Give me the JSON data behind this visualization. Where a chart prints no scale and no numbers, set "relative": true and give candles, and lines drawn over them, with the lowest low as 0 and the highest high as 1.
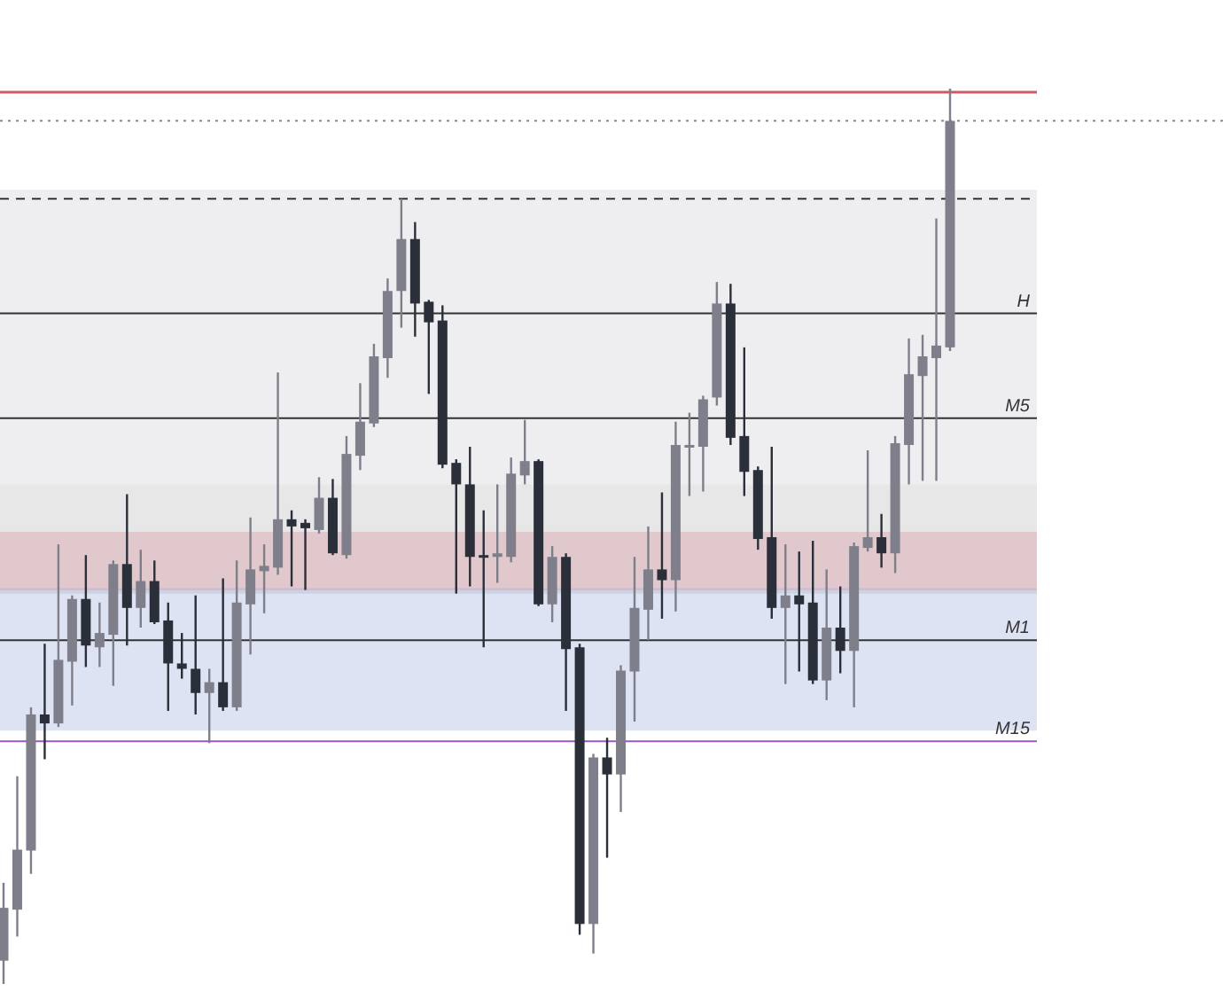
{
  "chart_data": {
    "type": "candlestick",
    "relative": true,
    "categories": [
      null,
      null,
      null,
      null,
      null,
      null,
      null,
      null,
      null,
      null,
      null,
      null,
      null,
      null,
      null,
      null,
      null,
      null,
      null,
      null,
      null,
      null,
      null,
      null,
      null,
      null,
      null,
      null,
      null,
      null,
      null,
      null,
      null,
      null,
      null,
      null,
      null,
      null,
      null,
      null,
      null,
      null,
      null,
      null,
      null,
      null,
      null,
      null,
      null,
      null,
      null,
      null,
      null,
      null,
      null,
      null,
      null,
      null,
      null,
      null,
      null,
      null,
      null,
      null,
      null,
      null,
      null,
      null,
      null,
      null
    ],
    "ohlc": [
      [
        0.026,
        0.113,
        0,
        0.085
      ],
      [
        0.083,
        0.232,
        0.053,
        0.15
      ],
      [
        0.149,
        0.309,
        0.123,
        0.301
      ],
      [
        0.301,
        0.38,
        0.251,
        0.291
      ],
      [
        0.291,
        0.491,
        0.287,
        0.362
      ],
      [
        0.36,
        0.434,
        0.311,
        0.43
      ],
      [
        0.43,
        0.479,
        0.354,
        0.378
      ],
      [
        0.376,
        0.426,
        0.354,
        0.392
      ],
      [
        0.39,
        0.473,
        0.333,
        0.469
      ],
      [
        0.469,
        0.547,
        0.378,
        0.42
      ],
      [
        0.42,
        0.485,
        0.398,
        0.45
      ],
      [
        0.45,
        0.473,
        0.402,
        0.404
      ],
      [
        0.406,
        0.426,
        0.305,
        0.358
      ],
      [
        0.358,
        0.392,
        0.341,
        0.352
      ],
      [
        0.352,
        0.434,
        0.301,
        0.325
      ],
      [
        0.325,
        0.352,
        0.269,
        0.337
      ],
      [
        0.337,
        0.453,
        0.305,
        0.309
      ],
      [
        0.309,
        0.473,
        0.305,
        0.426
      ],
      [
        0.424,
        0.521,
        0.368,
        0.463
      ],
      [
        0.461,
        0.491,
        0.414,
        0.467
      ],
      [
        0.465,
        0.683,
        0.457,
        0.519
      ],
      [
        0.519,
        0.529,
        0.444,
        0.511
      ],
      [
        0.515,
        0.519,
        0.44,
        0.509
      ],
      [
        0.507,
        0.566,
        0.503,
        0.543
      ],
      [
        0.543,
        0.564,
        0.479,
        0.481
      ],
      [
        0.479,
        0.612,
        0.475,
        0.592
      ],
      [
        0.59,
        0.671,
        0.574,
        0.628
      ],
      [
        0.626,
        0.715,
        0.622,
        0.701
      ],
      [
        0.699,
        0.788,
        0.677,
        0.774
      ],
      [
        0.774,
        0.877,
        0.733,
        0.832
      ],
      [
        0.832,
        0.851,
        0.723,
        0.76
      ],
      [
        0.762,
        0.764,
        0.659,
        0.739
      ],
      [
        0.741,
        0.758,
        0.576,
        0.58
      ],
      [
        0.582,
        0.586,
        0.436,
        0.558
      ],
      [
        0.558,
        0.6,
        0.444,
        0.477
      ],
      [
        0.479,
        0.529,
        0.376,
        0.477
      ],
      [
        0.477,
        0.558,
        0.448,
        0.481
      ],
      [
        0.477,
        0.588,
        0.471,
        0.57
      ],
      [
        0.568,
        0.63,
        0.558,
        0.584
      ],
      [
        0.584,
        0.586,
        0.422,
        0.424
      ],
      [
        0.424,
        0.489,
        0.404,
        0.477
      ],
      [
        0.477,
        0.481,
        0.305,
        0.374
      ],
      [
        0.376,
        0.38,
        0.055,
        0.067
      ],
      [
        0.067,
        0.257,
        0.034,
        0.253
      ],
      [
        0.253,
        0.275,
        0.141,
        0.234
      ],
      [
        0.234,
        0.356,
        0.192,
        0.35
      ],
      [
        0.349,
        0.477,
        0.293,
        0.42
      ],
      [
        0.418,
        0.511,
        0.384,
        0.463
      ],
      [
        0.463,
        0.549,
        0.408,
        0.451
      ],
      [
        0.451,
        0.628,
        0.416,
        0.602
      ],
      [
        0.6,
        0.638,
        0.545,
        0.602
      ],
      [
        0.6,
        0.657,
        0.55,
        0.653
      ],
      [
        0.655,
        0.784,
        0.646,
        0.76
      ],
      [
        0.76,
        0.782,
        0.602,
        0.61
      ],
      [
        0.612,
        0.711,
        0.545,
        0.572
      ],
      [
        0.574,
        0.578,
        0.485,
        0.497
      ],
      [
        0.499,
        0.6,
        0.408,
        0.42
      ],
      [
        0.42,
        0.491,
        0.335,
        0.434
      ],
      [
        0.434,
        0.483,
        0.349,
        0.424
      ],
      [
        0.426,
        0.495,
        0.335,
        0.339
      ],
      [
        0.339,
        0.463,
        0.317,
        0.398
      ],
      [
        0.398,
        0.444,
        0.347,
        0.372
      ],
      [
        0.372,
        0.493,
        0.309,
        0.489
      ],
      [
        0.487,
        0.596,
        0.483,
        0.499
      ],
      [
        0.499,
        0.525,
        0.465,
        0.481
      ],
      [
        0.481,
        0.612,
        0.459,
        0.604
      ],
      [
        0.602,
        0.721,
        0.558,
        0.681
      ],
      [
        0.679,
        0.725,
        0.562,
        0.701
      ],
      [
        0.699,
        0.855,
        0.562,
        0.713
      ],
      [
        0.711,
        1,
        0.707,
        0.964
      ]
    ],
    "ref_lines": [
      {
        "axis": "y",
        "value": 0.996,
        "label": null,
        "color": "#cc5b66",
        "line_style": "solid"
      },
      {
        "axis": "y",
        "value": 0.964,
        "label": null,
        "color": "#8a8a8a",
        "line_style": "dotted"
      },
      {
        "axis": "y",
        "value": 0.877,
        "label": null,
        "color": "#333333",
        "line_style": "dashed"
      },
      {
        "axis": "y",
        "value": 0.749,
        "label": "H",
        "color": "#333333",
        "line_style": "solid"
      },
      {
        "axis": "y",
        "value": 0.632,
        "label": "M5",
        "color": "#333333",
        "line_style": "solid"
      },
      {
        "axis": "y",
        "value": 0.384,
        "label": "M1",
        "color": "#333333",
        "line_style": "solid"
      },
      {
        "axis": "y",
        "value": 0.271,
        "label": "M15",
        "color": "#9b59c0",
        "line_style": "solid"
      }
    ],
    "bands": [
      {
        "axis": "y",
        "from": 0.558,
        "to": 0.887,
        "color": "#c8c8d0"
      },
      {
        "axis": "y",
        "from": 0.436,
        "to": 0.558,
        "color": "#b0b0b0"
      },
      {
        "axis": "y",
        "from": 0.283,
        "to": 0.442,
        "color": "#8fa2d6"
      },
      {
        "axis": "y",
        "from": 0.44,
        "to": 0.505,
        "color": "#d08090"
      }
    ]
  }
}
